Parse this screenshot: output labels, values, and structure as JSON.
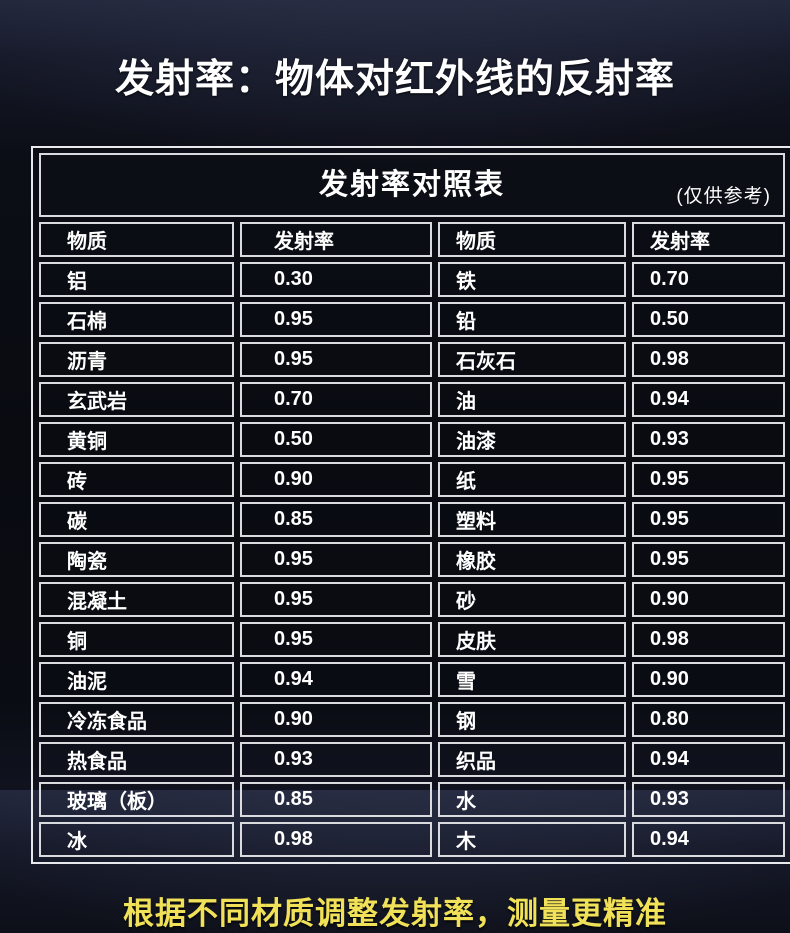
{
  "page": {
    "title": "发射率：物体对红外线的反射率",
    "footer": "根据不同材质调整发射率，测量更精准"
  },
  "table": {
    "title": "发射率对照表",
    "note": "(仅供参考)",
    "headers": [
      "物质",
      "发射率",
      "物质",
      "发射率"
    ],
    "rows": [
      [
        "铝",
        "0.30",
        "铁",
        "0.70"
      ],
      [
        "石棉",
        "0.95",
        "铅",
        "0.50"
      ],
      [
        "沥青",
        "0.95",
        "石灰石",
        "0.98"
      ],
      [
        "玄武岩",
        "0.70",
        "油",
        "0.94"
      ],
      [
        "黄铜",
        "0.50",
        "油漆",
        "0.93"
      ],
      [
        "砖",
        "0.90",
        "纸",
        "0.95"
      ],
      [
        "碳",
        "0.85",
        "塑料",
        "0.95"
      ],
      [
        "陶瓷",
        "0.95",
        "橡胶",
        "0.95"
      ],
      [
        "混凝土",
        "0.95",
        "砂",
        "0.90"
      ],
      [
        "铜",
        "0.95",
        "皮肤",
        "0.98"
      ],
      [
        "油泥",
        "0.94",
        "雪",
        "0.90"
      ],
      [
        "冷冻食品",
        "0.90",
        "钢",
        "0.80"
      ],
      [
        "热食品",
        "0.93",
        "织品",
        "0.94"
      ],
      [
        "玻璃（板）",
        "0.85",
        "水",
        "0.93"
      ],
      [
        "冰",
        "0.98",
        "木",
        "0.94"
      ]
    ]
  },
  "colors": {
    "background_top": "#21253a",
    "background": "#0a0c12",
    "table_border": "#d9dbdf",
    "text": "#ffffff",
    "accent_yellow": "#f0e158"
  }
}
